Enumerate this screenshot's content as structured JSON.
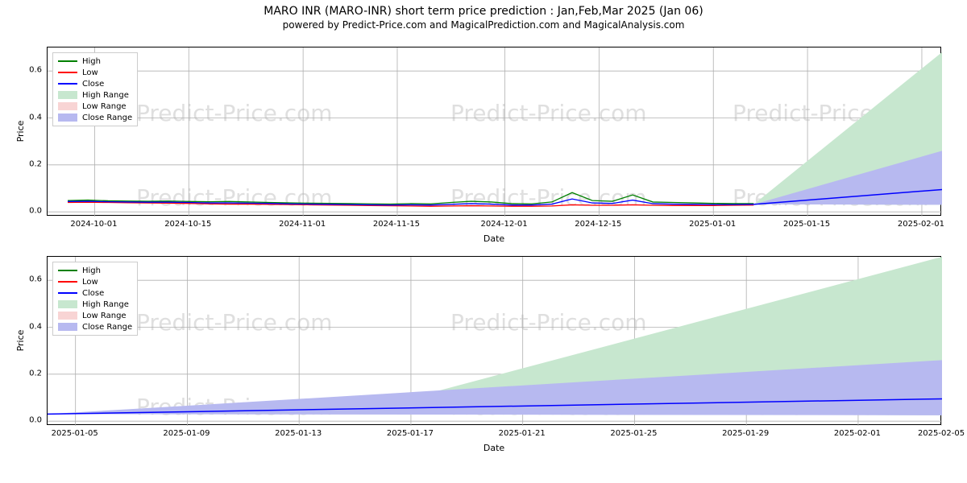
{
  "title": "MARO INR (MARO-INR) short term price prediction : Jan,Feb,Mar 2025 (Jan 06)",
  "subtitle": "powered by Predict-Price.com and MagicalPrediction.com and MagicalAnalysis.com",
  "watermark_text": "Predict-Price.com",
  "colors": {
    "high": "#008000",
    "low": "#ff0000",
    "close": "#0000ff",
    "high_range": "#c7e7cf",
    "low_range": "#f8d4d4",
    "close_range": "#b7b9f0",
    "grid": "#b0b0b0",
    "border": "#000000",
    "bg": "#ffffff",
    "text": "#000000"
  },
  "legend": {
    "items": [
      {
        "label": "High",
        "type": "line",
        "color": "#008000"
      },
      {
        "label": "Low",
        "type": "line",
        "color": "#ff0000"
      },
      {
        "label": "Close",
        "type": "line",
        "color": "#0000ff"
      },
      {
        "label": "High Range",
        "type": "patch",
        "color": "#c7e7cf"
      },
      {
        "label": "Low Range",
        "type": "patch",
        "color": "#f8d4d4"
      },
      {
        "label": "Close Range",
        "type": "patch",
        "color": "#b7b9f0"
      }
    ]
  },
  "chart1": {
    "type": "line",
    "xlabel": "Date",
    "ylabel": "Price",
    "ylim": [
      -0.02,
      0.7
    ],
    "xlim": [
      0,
      133
    ],
    "yticks": [
      0.0,
      0.2,
      0.4,
      0.6
    ],
    "ytick_labels": [
      "0.0",
      "0.2",
      "0.4",
      "0.6"
    ],
    "xticks": [
      7,
      21,
      38,
      52,
      68,
      82,
      99,
      113,
      130
    ],
    "xtick_labels": [
      "2024-10-01",
      "2024-10-15",
      "2024-11-01",
      "2024-11-15",
      "2024-12-01",
      "2024-12-15",
      "2025-01-01",
      "2025-01-15",
      "2025-02-01"
    ],
    "history": {
      "x": [
        3,
        6,
        9,
        12,
        15,
        18,
        21,
        24,
        27,
        30,
        33,
        36,
        39,
        42,
        45,
        48,
        51,
        54,
        57,
        60,
        63,
        66,
        69,
        72,
        75,
        78,
        81,
        84,
        87,
        90,
        93,
        96,
        99,
        102,
        105
      ],
      "high": [
        0.048,
        0.05,
        0.047,
        0.046,
        0.045,
        0.046,
        0.044,
        0.043,
        0.044,
        0.042,
        0.04,
        0.038,
        0.037,
        0.036,
        0.035,
        0.034,
        0.033,
        0.035,
        0.034,
        0.04,
        0.045,
        0.042,
        0.035,
        0.034,
        0.042,
        0.082,
        0.048,
        0.045,
        0.072,
        0.042,
        0.04,
        0.038,
        0.036,
        0.035,
        0.035
      ],
      "low": [
        0.04,
        0.041,
        0.04,
        0.039,
        0.038,
        0.037,
        0.036,
        0.034,
        0.033,
        0.033,
        0.032,
        0.031,
        0.03,
        0.029,
        0.028,
        0.027,
        0.026,
        0.025,
        0.024,
        0.025,
        0.026,
        0.025,
        0.024,
        0.024,
        0.025,
        0.03,
        0.028,
        0.028,
        0.03,
        0.028,
        0.027,
        0.027,
        0.027,
        0.028,
        0.029
      ],
      "close": [
        0.044,
        0.045,
        0.043,
        0.042,
        0.041,
        0.041,
        0.04,
        0.038,
        0.038,
        0.037,
        0.036,
        0.034,
        0.033,
        0.032,
        0.031,
        0.03,
        0.029,
        0.03,
        0.029,
        0.032,
        0.035,
        0.033,
        0.029,
        0.029,
        0.033,
        0.055,
        0.038,
        0.036,
        0.05,
        0.035,
        0.033,
        0.032,
        0.031,
        0.031,
        0.032
      ]
    },
    "forecast": {
      "x_start": 105,
      "x_end": 133,
      "close_start": 0.032,
      "close_end": 0.095,
      "close_range_top_end": 0.26,
      "close_range_bot_end": 0.03,
      "high_range_top_end": 0.68,
      "high_range_bot_end": 0.03
    }
  },
  "chart2": {
    "type": "line",
    "xlabel": "Date",
    "ylabel": "Price",
    "ylim": [
      -0.02,
      0.7
    ],
    "xlim": [
      0,
      32
    ],
    "yticks": [
      0.0,
      0.2,
      0.4,
      0.6
    ],
    "ytick_labels": [
      "0.0",
      "0.2",
      "0.4",
      "0.6"
    ],
    "xticks": [
      1,
      5,
      9,
      13,
      17,
      21,
      25,
      29,
      32
    ],
    "xtick_labels": [
      "2025-01-05",
      "2025-01-09",
      "2025-01-13",
      "2025-01-17",
      "2025-01-21",
      "2025-01-25",
      "2025-01-29",
      "2025-02-01",
      "2025-02-05"
    ],
    "history": {
      "x": [
        0,
        1,
        2,
        3,
        4,
        5,
        6,
        7,
        8,
        9,
        10,
        11
      ],
      "close": [
        0.03,
        0.03,
        0.031,
        0.031,
        0.032,
        0.032,
        0.033,
        0.033,
        0.034,
        0.034,
        0.035,
        0.035
      ]
    },
    "forecast": {
      "x_start": 0,
      "x_end": 32,
      "close_start": 0.03,
      "close_end": 0.095,
      "close_range_top_end": 0.26,
      "close_range_bot_end": 0.025,
      "high_range_top_end": 0.7,
      "high_range_bot_end": 0.025
    }
  }
}
